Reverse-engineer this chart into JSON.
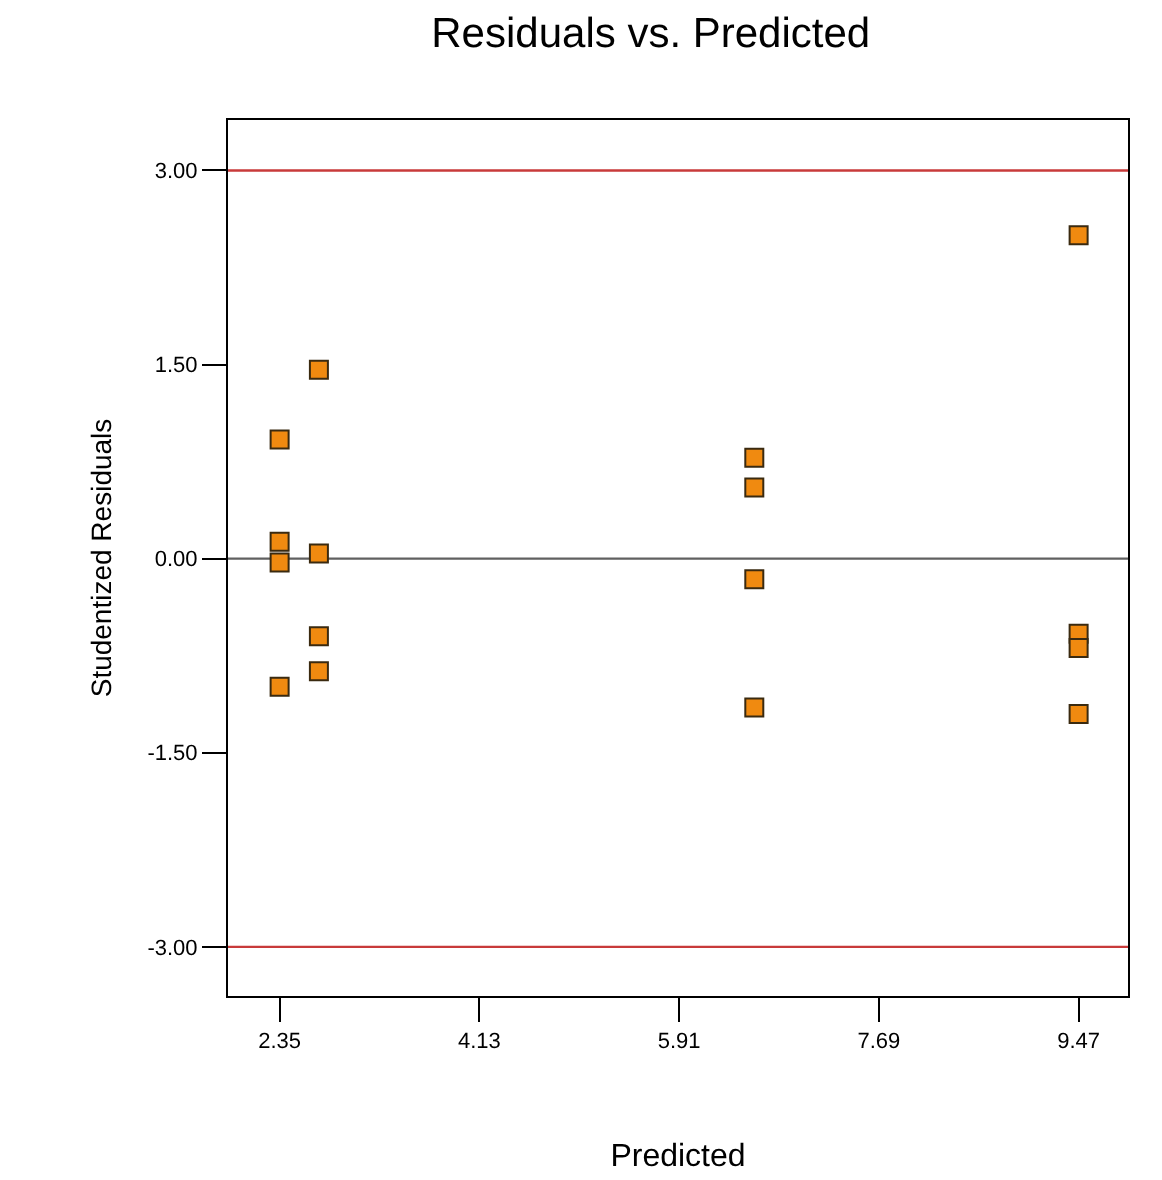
{
  "chart_data": {
    "type": "scatter",
    "title": "Residuals vs. Predicted",
    "xlabel": "Predicted",
    "ylabel": "Studentized Residuals",
    "x": [
      2.35,
      2.35,
      2.35,
      2.35,
      2.7,
      2.7,
      2.7,
      2.7,
      6.58,
      6.58,
      6.58,
      6.58,
      9.47,
      9.47,
      9.47,
      9.47
    ],
    "series": [
      {
        "color": "#f08a10",
        "values": [
          0.92,
          0.13,
          -0.03,
          -0.99,
          1.46,
          0.04,
          -0.6,
          -0.87,
          0.78,
          0.55,
          -0.16,
          -1.15,
          2.5,
          -0.58,
          -0.69,
          -1.2
        ]
      }
    ],
    "xlim": [
      1.89,
      9.91
    ],
    "ylim": [
      -3.38,
      3.39
    ],
    "xticks": [
      {
        "value": 2.35,
        "label": "2.35"
      },
      {
        "value": 4.13,
        "label": "4.13"
      },
      {
        "value": 5.91,
        "label": "5.91"
      },
      {
        "value": 7.69,
        "label": "7.69"
      },
      {
        "value": 9.47,
        "label": "9.47"
      }
    ],
    "yticks": [
      {
        "value": -3,
        "label": "-3.00"
      },
      {
        "value": -1.5,
        "label": "-1.50"
      },
      {
        "value": 0,
        "label": "0.00"
      },
      {
        "value": 1.5,
        "label": "1.50"
      },
      {
        "value": 3,
        "label": "3.00"
      }
    ],
    "ref_lines": [
      {
        "axis": "y",
        "value": 3,
        "color": "#c83a3a"
      },
      {
        "axis": "y",
        "value": 0,
        "color": "#606060"
      },
      {
        "axis": "y",
        "value": -3,
        "color": "#c83a3a"
      }
    ],
    "grid": false,
    "marker": "square"
  }
}
